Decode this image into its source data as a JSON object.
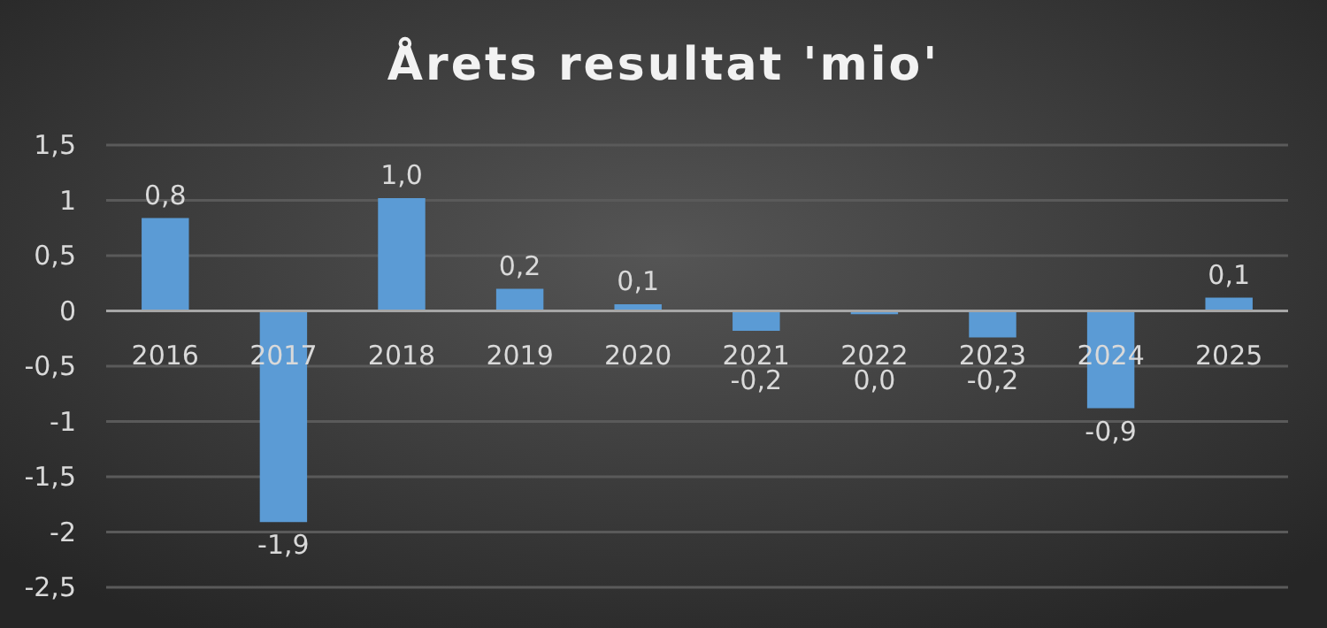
{
  "chart_data": {
    "type": "bar",
    "title": "Årets resultat 'mio'",
    "categories": [
      "2016",
      "2017",
      "2018",
      "2019",
      "2020",
      "2021",
      "2022",
      "2023",
      "2024",
      "2025"
    ],
    "values": [
      0.84,
      -1.91,
      1.02,
      0.2,
      0.06,
      -0.18,
      -0.03,
      -0.24,
      -0.88,
      0.12
    ],
    "value_labels": [
      "0,8",
      "-1,9",
      "1,0",
      "0,2",
      "0,1",
      "-0,2",
      "0,0",
      "-0,2",
      "-0,9",
      "0,1"
    ],
    "color": "#5b9bd5",
    "ylim": [
      -2.5,
      1.5
    ],
    "yticks": [
      {
        "value": -2.5,
        "label": "-2,5"
      },
      -2,
      {
        "value": -1.5,
        "label": "-1,5"
      },
      -1,
      {
        "value": -0.5,
        "label": "-0,5"
      },
      0,
      {
        "value": 0.5,
        "label": "0,5"
      },
      1,
      {
        "value": 1.5,
        "label": "1,5"
      }
    ],
    "grid": "y"
  }
}
